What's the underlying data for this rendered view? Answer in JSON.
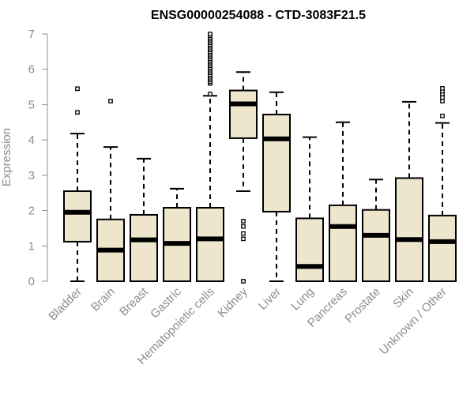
{
  "chart_data": {
    "type": "boxplot",
    "title": "ENSG00000254088 - CTD-3083F21.5",
    "xlabel": "",
    "ylabel": "Expression",
    "ylim": [
      0,
      7
    ],
    "yticks": [
      "0",
      "1",
      "2",
      "3",
      "4",
      "5",
      "6",
      "7"
    ],
    "box_fill": "#ede6cc",
    "line_color": "#000000",
    "categories": [
      "Bladder",
      "Brain",
      "Breast",
      "Gastric",
      "Hematopoietic cells",
      "Kidney",
      "Liver",
      "Lung",
      "Pancreas",
      "Prostate",
      "Skin",
      "Unknown / Other"
    ],
    "boxes": [
      {
        "min": 0,
        "q1": 1.12,
        "median": 1.95,
        "q3": 2.55,
        "max": 4.18,
        "outliers": [
          4.78,
          5.45
        ]
      },
      {
        "min": 0,
        "q1": 0,
        "median": 0.88,
        "q3": 1.75,
        "max": 3.8,
        "outliers": [
          5.1
        ]
      },
      {
        "min": 0,
        "q1": 0,
        "median": 1.17,
        "q3": 1.88,
        "max": 3.47,
        "outliers": []
      },
      {
        "min": 0,
        "q1": 0,
        "median": 1.07,
        "q3": 2.08,
        "max": 2.62,
        "outliers": []
      },
      {
        "min": 0,
        "q1": 0,
        "median": 1.2,
        "q3": 2.08,
        "max": 5.25,
        "outliers": [
          5.3,
          5.6,
          5.65,
          5.7,
          5.75,
          5.8,
          5.85,
          5.9,
          5.95,
          6.0,
          6.05,
          6.1,
          6.15,
          6.2,
          6.25,
          6.3,
          6.35,
          6.4,
          6.45,
          6.5,
          6.55,
          6.6,
          6.65,
          6.7,
          6.75,
          6.8,
          6.85,
          6.9,
          6.95,
          7.0
        ]
      },
      {
        "min": 2.55,
        "q1": 4.05,
        "median": 5.02,
        "q3": 5.4,
        "max": 5.92,
        "outliers": [
          0,
          1.2,
          1.35,
          1.55,
          1.7
        ]
      },
      {
        "min": 0,
        "q1": 1.97,
        "median": 4.03,
        "q3": 4.72,
        "max": 5.35,
        "outliers": []
      },
      {
        "min": 0,
        "q1": 0,
        "median": 0.42,
        "q3": 1.78,
        "max": 4.08,
        "outliers": []
      },
      {
        "min": 0,
        "q1": 0,
        "median": 1.55,
        "q3": 2.15,
        "max": 4.5,
        "outliers": []
      },
      {
        "min": 0,
        "q1": 0,
        "median": 1.3,
        "q3": 2.02,
        "max": 2.88,
        "outliers": []
      },
      {
        "min": 0,
        "q1": 0,
        "median": 1.18,
        "q3": 2.92,
        "max": 5.08,
        "outliers": []
      },
      {
        "min": 0,
        "q1": 0,
        "median": 1.12,
        "q3": 1.86,
        "max": 4.48,
        "outliers": [
          4.68,
          5.1,
          5.2,
          5.3,
          5.38,
          5.46
        ]
      }
    ]
  }
}
